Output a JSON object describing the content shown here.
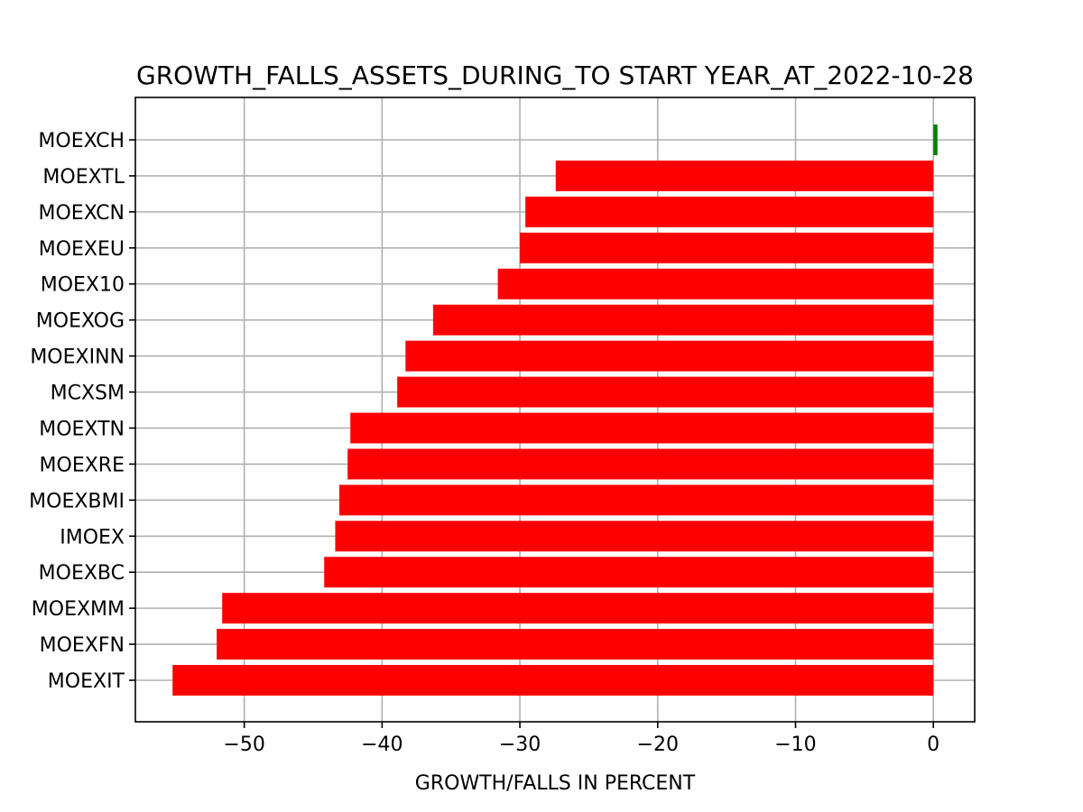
{
  "chart_data": {
    "type": "bar",
    "orientation": "horizontal",
    "title": "GROWTH_FALLS_ASSETS_DURING_TO START YEAR_AT_2022-10-28",
    "xlabel": "GROWTH/FALLS IN PERCENT",
    "ylabel": "",
    "xlim": [
      -57.9,
      3.0
    ],
    "xticks": [
      -50,
      -40,
      -30,
      -20,
      -10,
      0
    ],
    "xtick_labels": [
      "−50",
      "−40",
      "−30",
      "−20",
      "−10",
      "0"
    ],
    "grid": true,
    "categories": [
      "MOEXCH",
      "MOEXTL",
      "MOEXCN",
      "MOEXEU",
      "MOEX10",
      "MOEXOG",
      "MOEXINN",
      "MCXSM",
      "MOEXTN",
      "MOEXRE",
      "MOEXBMI",
      "IMOEX",
      "MOEXBC",
      "MOEXMM",
      "MOEXFN",
      "MOEXIT"
    ],
    "values": [
      0.3,
      -27.4,
      -29.6,
      -30.0,
      -31.6,
      -36.3,
      -38.3,
      -38.9,
      -42.3,
      -42.5,
      -43.1,
      -43.4,
      -44.2,
      -51.6,
      -52.0,
      -55.2
    ],
    "positive_color": "#008000",
    "negative_color": "#ff0000"
  }
}
